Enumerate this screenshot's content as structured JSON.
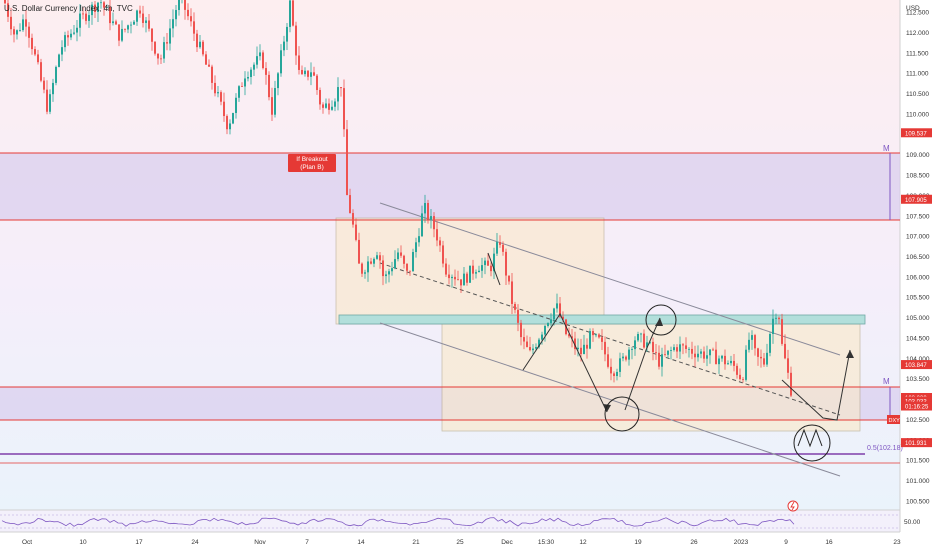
{
  "header": {
    "symbol_title": "U.S. Dollar Currency Index, 4h, TVC"
  },
  "chart_data": {
    "type": "candlestick",
    "title": "U.S. Dollar Currency Index, 4h, TVC",
    "currency": "USD",
    "ylim": [
      100.2,
      113.5
    ],
    "xlabel": "",
    "ylabel": "",
    "x_ticks": [
      "Oct",
      "10",
      "17",
      "24",
      "Nov",
      "7",
      "14",
      "21",
      "25",
      "Dec",
      "15:30",
      "12",
      "19",
      "26",
      "2023",
      "9",
      "16",
      "23"
    ],
    "y_ticks": [
      "112.500",
      "112.000",
      "111.500",
      "111.000",
      "110.500",
      "110.000",
      "109.500",
      "109.000",
      "108.500",
      "108.000",
      "107.500",
      "107.000",
      "106.500",
      "106.000",
      "105.500",
      "105.000",
      "104.500",
      "104.000",
      "103.500",
      "103.000",
      "102.500",
      "102.000",
      "101.500",
      "101.000",
      "100.500"
    ],
    "price_badges": [
      {
        "label": "109.537",
        "value": 109.537,
        "color": "#e53935"
      },
      {
        "label": "107.905",
        "value": 107.905,
        "color": "#e53935"
      },
      {
        "label": "103.847",
        "value": 103.847,
        "color": "#e53935"
      },
      {
        "label": "103.039",
        "value": 103.039,
        "color": "#e53935"
      },
      {
        "label": "103.033",
        "value": 102.95,
        "color": "#e53935"
      },
      {
        "label": "01:16:25",
        "value": 102.83,
        "color": "#e53935"
      },
      {
        "label": "101.931",
        "value": 101.931,
        "color": "#e53935"
      }
    ],
    "price_label_tag": "DXY",
    "levels": [
      {
        "value": 109.537,
        "color": "#e53935"
      },
      {
        "value": 107.905,
        "color": "#e53935"
      },
      {
        "value": 103.847,
        "color": "#e53935"
      },
      {
        "value": 103.039,
        "color": "#e53935"
      },
      {
        "value": 102.18,
        "color": "#6a1b9a",
        "label": "0.5(102.18)"
      }
    ],
    "zones": [
      {
        "from": 107.905,
        "to": 109.537,
        "color": "#d1c4e9"
      },
      {
        "from": 103.039,
        "to": 103.847,
        "color": "#d1c4e9"
      },
      {
        "from": 105.35,
        "to": 105.5,
        "color": "#b2dfdb"
      }
    ],
    "annotations": [
      {
        "text": "If Breakout",
        "color": "#e53935"
      },
      {
        "text": "(Plan B)",
        "color": "#e53935"
      },
      {
        "text": "M",
        "color": "#7e57c2"
      },
      {
        "text": "M",
        "color": "#7e57c2"
      }
    ],
    "candles_approx": [
      {
        "x": "Oct",
        "value": 112.4
      },
      {
        "x": "10",
        "value": 110.5
      },
      {
        "x": "17",
        "value": 112.6
      },
      {
        "x": "24",
        "value": 111.8
      },
      {
        "x": "Nov",
        "value": 109.9
      },
      {
        "x": "7",
        "value": 110.2
      },
      {
        "x": "14",
        "value": 106.2
      },
      {
        "x": "21",
        "value": 107.8
      },
      {
        "x": "25",
        "value": 106.0
      },
      {
        "x": "Dec",
        "value": 104.6
      },
      {
        "x": "15:30",
        "value": 105.1
      },
      {
        "x": "12",
        "value": 104.0
      },
      {
        "x": "19",
        "value": 104.4
      },
      {
        "x": "26",
        "value": 104.3
      },
      {
        "x": "2023",
        "value": 104.2
      },
      {
        "x": "9",
        "value": 103.0
      }
    ],
    "indicator": {
      "type": "RSI",
      "ticks": [
        "50.00"
      ],
      "value": 50.0
    }
  }
}
